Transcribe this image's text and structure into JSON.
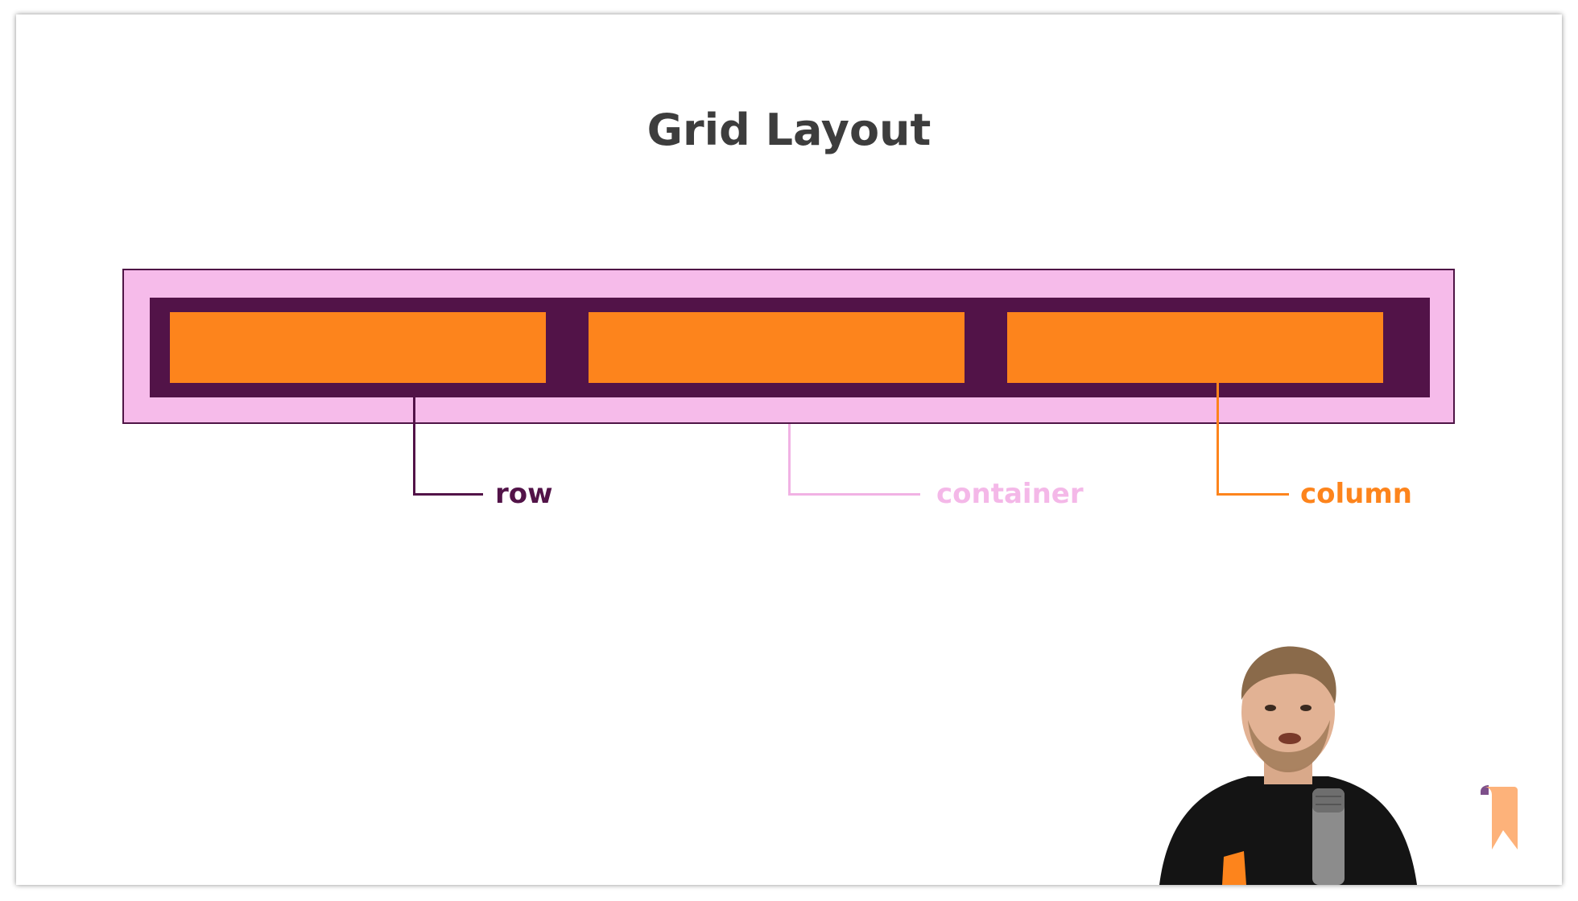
{
  "slide": {
    "title": "Grid Layout"
  },
  "diagram": {
    "labels": {
      "row": "row",
      "container": "container",
      "column": "column"
    },
    "column_count": 3,
    "colors": {
      "container": "#f6bbea",
      "container_border": "#4f1546",
      "row": "#521348",
      "column": "#fd841c",
      "title": "#3d3d3d"
    }
  },
  "presenter": {
    "icon": "presenter-video"
  },
  "logo": {
    "icon": "bookmark-logo-icon"
  }
}
